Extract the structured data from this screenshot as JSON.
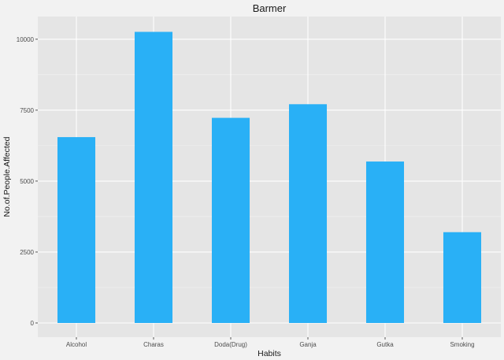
{
  "chart_data": {
    "type": "bar",
    "title": "Barmer",
    "xlabel": "Habits",
    "ylabel": "No.of.People.Affected",
    "categories": [
      "Alcohol",
      "Charas",
      "Doda(Drug)",
      "Ganja",
      "Gutka",
      "Smoking"
    ],
    "values": [
      6550,
      10260,
      7230,
      7710,
      5690,
      3200
    ],
    "ylim": [
      -500,
      10800
    ],
    "yticks": [
      0,
      2500,
      5000,
      7500,
      10000
    ],
    "ytick_labels": [
      "0",
      "2500",
      "5000",
      "7500",
      "10000"
    ],
    "grid": true,
    "legend": "none",
    "colors": {
      "bar": "#29b0f6",
      "panel": "#e5e5e5",
      "grid_major": "#ffffff",
      "grid_minor": "#f2f2f2",
      "background": "#f2f2f2"
    }
  }
}
